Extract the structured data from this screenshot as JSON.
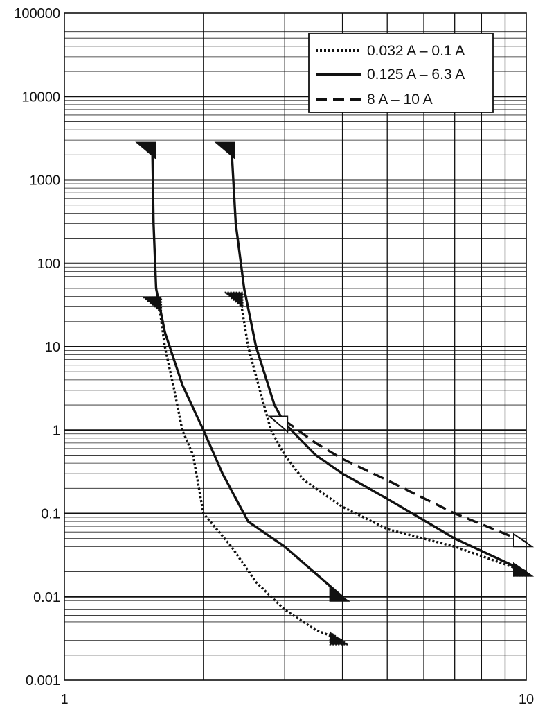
{
  "chart_data": {
    "type": "line",
    "title": "",
    "xlabel": "",
    "ylabel": "",
    "xscale": "log",
    "yscale": "log",
    "xlim": [
      1,
      10
    ],
    "ylim": [
      0.001,
      100000
    ],
    "grid": true,
    "legend_position": "top-right",
    "x_tick_labels": [
      "1",
      "10"
    ],
    "y_tick_labels": [
      "100000",
      "10000",
      "1000",
      "100",
      "10",
      "1",
      "0.1",
      "0.01",
      "0.001"
    ],
    "series": [
      {
        "name": "0.032 A – 0.1 A",
        "style": "dotted",
        "curves": [
          [
            [
              1.6,
              35
            ],
            [
              1.65,
              10
            ],
            [
              1.73,
              3
            ],
            [
              1.8,
              1
            ],
            [
              1.9,
              0.5
            ],
            [
              2.0,
              0.1
            ],
            [
              2.3,
              0.04
            ],
            [
              2.6,
              0.015
            ],
            [
              3.0,
              0.007
            ],
            [
              3.5,
              0.004
            ],
            [
              4.0,
              0.003
            ]
          ],
          [
            [
              2.4,
              40
            ],
            [
              2.5,
              10
            ],
            [
              2.65,
              3
            ],
            [
              2.8,
              1
            ],
            [
              3.0,
              0.5
            ],
            [
              3.3,
              0.25
            ],
            [
              4.0,
              0.12
            ],
            [
              5.0,
              0.065
            ],
            [
              7.0,
              0.04
            ],
            [
              10.0,
              0.02
            ]
          ]
        ]
      },
      {
        "name": "0.125 A – 6.3 A",
        "style": "solid",
        "curves": [
          [
            [
              1.55,
              2500
            ],
            [
              1.56,
              300
            ],
            [
              1.58,
              50
            ],
            [
              1.65,
              15
            ],
            [
              1.8,
              3.5
            ],
            [
              2.0,
              1
            ],
            [
              2.2,
              0.3
            ],
            [
              2.5,
              0.08
            ],
            [
              3.0,
              0.04
            ],
            [
              4.0,
              0.01
            ]
          ],
          [
            [
              2.3,
              2500
            ],
            [
              2.35,
              300
            ],
            [
              2.45,
              50
            ],
            [
              2.6,
              10
            ],
            [
              2.85,
              2
            ],
            [
              3.0,
              1.2
            ],
            [
              3.5,
              0.5
            ],
            [
              4.0,
              0.3
            ],
            [
              5.0,
              0.15
            ],
            [
              7.0,
              0.05
            ],
            [
              10.0,
              0.02
            ]
          ]
        ]
      },
      {
        "name": "8 A – 10 A",
        "style": "dashed",
        "curves": [
          [
            [
              3.0,
              1.3
            ],
            [
              3.5,
              0.7
            ],
            [
              4.0,
              0.45
            ],
            [
              5.0,
              0.25
            ],
            [
              7.0,
              0.1
            ],
            [
              10.0,
              0.045
            ]
          ]
        ]
      }
    ]
  },
  "legend": {
    "items": [
      "0.032 A – 0.1 A",
      "0.125 A – 6.3 A",
      "8 A – 10 A"
    ]
  }
}
